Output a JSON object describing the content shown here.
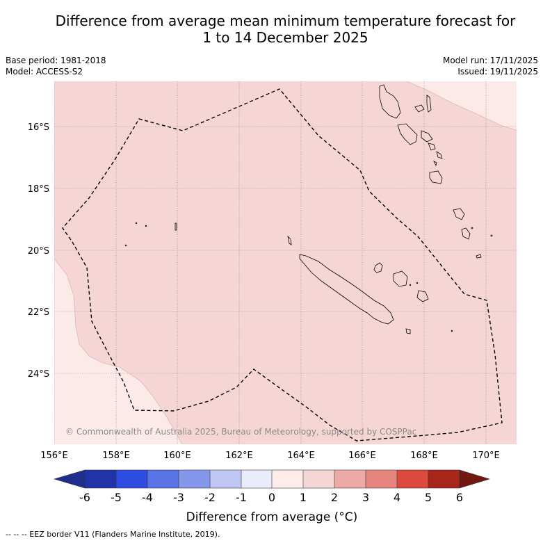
{
  "title": {
    "line1": "Difference from average mean minimum temperature forecast for",
    "line2": "1 to 14 December 2025"
  },
  "info": {
    "base_period": "Base period: 1981-2018",
    "model": "Model: ACCESS-S2",
    "model_run": "Model run: 17/11/2025",
    "issued": "Issued: 19/11/2025"
  },
  "map": {
    "lon_range": [
      156,
      171
    ],
    "lat_range": [
      -26.0,
      -14.8
    ],
    "lon_ticks": [
      "156°E",
      "158°E",
      "160°E",
      "162°E",
      "164°E",
      "166°E",
      "168°E",
      "170°E"
    ],
    "lat_ticks": [
      "16°S",
      "18°S",
      "20°S",
      "22°S",
      "24°S"
    ],
    "copyright": "© Commonwealth of Australia 2025, Bureau of Meteorology, supported by COSPPac",
    "colors": {
      "anomaly_1_2": "#f5d6d5",
      "anomaly_0_1": "#fceae8",
      "grid": "#808080",
      "eez": "#000000"
    }
  },
  "colorbar": {
    "ticks": [
      "-6",
      "-5",
      "-4",
      "-3",
      "-2",
      "-1",
      "0",
      "1",
      "2",
      "3",
      "4",
      "5",
      "6"
    ],
    "colors": [
      "#1f2d8c",
      "#2133a8",
      "#2e4ce0",
      "#5a73e6",
      "#8597ea",
      "#bfc6f4",
      "#e8ecfb",
      "#fdecea",
      "#f5d6d5",
      "#eeaaa6",
      "#e7847d",
      "#db4a3d",
      "#a8251c",
      "#731712"
    ],
    "label": "Difference from average (°C)"
  },
  "footer": "--  --  -- EEZ border V11 (Flanders Marine Institute, 2019)."
}
